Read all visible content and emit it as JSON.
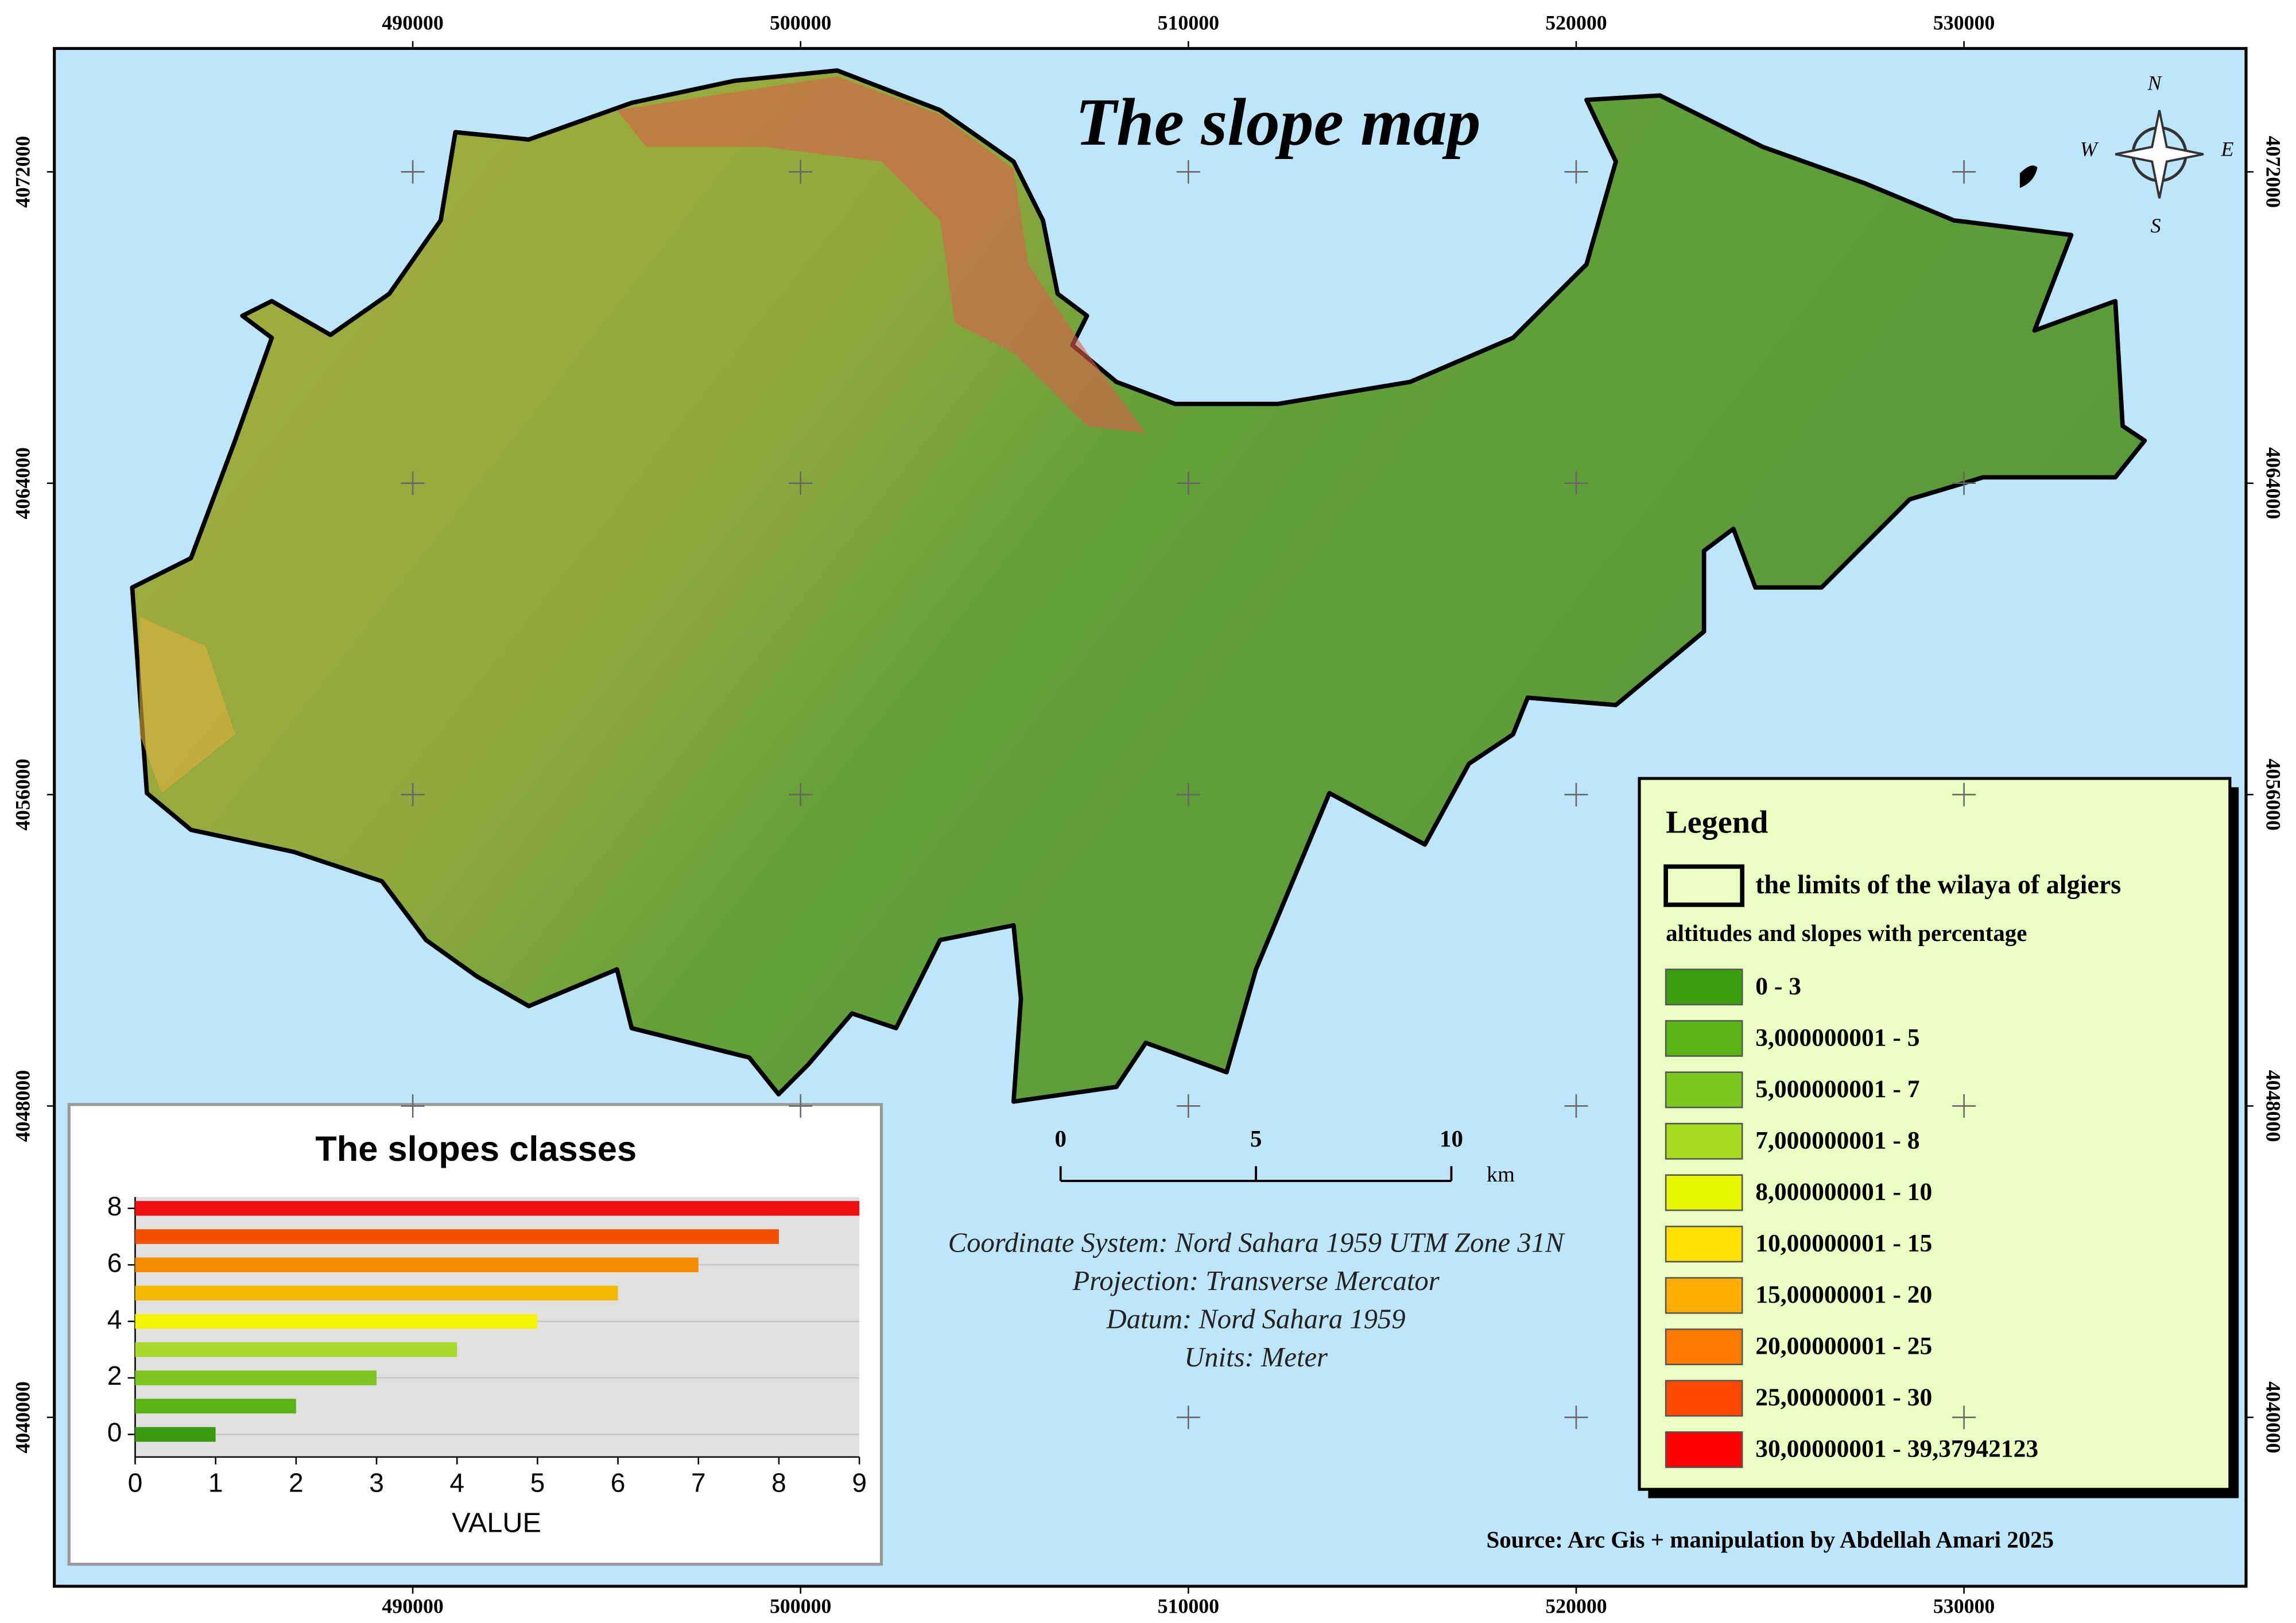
{
  "map": {
    "title": "The slope map",
    "xticks": [
      490000,
      500000,
      510000,
      520000,
      530000
    ],
    "yticks": [
      4072000,
      4064000,
      4056000,
      4048000,
      4040000
    ],
    "xlim": [
      480758,
      537273
    ],
    "ylim": [
      4035660,
      4075170
    ],
    "compass": {
      "n": "N",
      "w": "W",
      "e": "E",
      "s": "S"
    },
    "scale_bar": {
      "ticks": [
        0,
        5,
        10
      ],
      "unit": "km"
    },
    "info": [
      "Coordinate System: Nord Sahara 1959 UTM Zone 31N",
      "Projection: Transverse Mercator",
      "Datum: Nord Sahara 1959",
      "Units: Meter"
    ],
    "source": "Source: Arc Gis + manipulation by Abdellah Amari 2025",
    "legend": {
      "title": "Legend",
      "boundary": "the limits of the wilaya of algiers",
      "subtitle": "altitudes and slopes with percentage",
      "classes": [
        {
          "label": "0 - 3",
          "color": "#3aa00f"
        },
        {
          "label": "3,000000001 - 5",
          "color": "#5ab514"
        },
        {
          "label": "5,000000001 - 7",
          "color": "#7dc81e"
        },
        {
          "label": "7,000000001 - 8",
          "color": "#a8dc20"
        },
        {
          "label": "8,000000001 - 10",
          "color": "#e8f500"
        },
        {
          "label": "10,00000001 - 15",
          "color": "#ffe000"
        },
        {
          "label": "15,00000001 - 20",
          "color": "#ffae00"
        },
        {
          "label": "20,00000001 - 25",
          "color": "#ff7a00"
        },
        {
          "label": "25,00000001 - 30",
          "color": "#ff4800"
        },
        {
          "label": "30,00000001 - 39,37942123",
          "color": "#ff0000"
        }
      ]
    }
  },
  "chart_data": {
    "type": "bar",
    "orientation": "horizontal",
    "title": "The slopes classes",
    "x_label": "VALUE",
    "y": [
      0,
      1,
      2,
      3,
      4,
      5,
      6,
      7,
      8
    ],
    "values": [
      1,
      2,
      3,
      4,
      5,
      6,
      7,
      8,
      9
    ],
    "colors": [
      "#3a9a10",
      "#5cb314",
      "#7fc520",
      "#a9d92a",
      "#f4f400",
      "#f5b800",
      "#f58a00",
      "#f55000",
      "#f01010"
    ],
    "xlim": [
      0,
      9
    ],
    "xticks": [
      0,
      1,
      2,
      3,
      4,
      5,
      6,
      7,
      8,
      9
    ],
    "ylim": [
      -0.8,
      8.4
    ],
    "yticks": [
      0,
      2,
      4,
      6,
      8
    ],
    "grid": true
  }
}
